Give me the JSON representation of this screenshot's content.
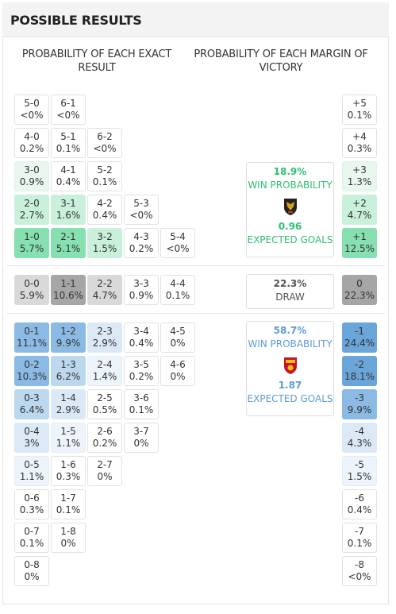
{
  "title": "POSSIBLE RESULTS",
  "headers": {
    "exact_line1": "PROBABILITY OF EACH EXACT",
    "exact_line2": "RESULT",
    "margin_line1": "PROBABILITY OF EACH MARGIN OF",
    "margin_line2": "VICTORY"
  },
  "colors": {
    "home_accent": "#2fbf71",
    "away_accent": "#5b9bd5",
    "draw_text": "#555555"
  },
  "home_wins": [
    {
      "score": "5-0",
      "pct": "<0%"
    },
    {
      "score": "6-1",
      "pct": "<0%"
    },
    {
      "score": "4-0",
      "pct": "0.2%"
    },
    {
      "score": "5-1",
      "pct": "0.1%"
    },
    {
      "score": "6-2",
      "pct": "<0%"
    },
    {
      "score": "3-0",
      "pct": "0.9%"
    },
    {
      "score": "4-1",
      "pct": "0.4%"
    },
    {
      "score": "5-2",
      "pct": "0.1%"
    },
    {
      "score": "2-0",
      "pct": "2.7%"
    },
    {
      "score": "3-1",
      "pct": "1.6%"
    },
    {
      "score": "4-2",
      "pct": "0.4%"
    },
    {
      "score": "5-3",
      "pct": "<0%"
    },
    {
      "score": "1-0",
      "pct": "5.7%"
    },
    {
      "score": "2-1",
      "pct": "5.1%"
    },
    {
      "score": "3-2",
      "pct": "1.5%"
    },
    {
      "score": "4-3",
      "pct": "0.2%"
    },
    {
      "score": "5-4",
      "pct": "<0%"
    }
  ],
  "draws": [
    {
      "score": "0-0",
      "pct": "5.9%"
    },
    {
      "score": "1-1",
      "pct": "10.6%"
    },
    {
      "score": "2-2",
      "pct": "4.7%"
    },
    {
      "score": "3-3",
      "pct": "0.9%"
    },
    {
      "score": "4-4",
      "pct": "0.1%"
    }
  ],
  "away_wins": [
    {
      "score": "0-1",
      "pct": "11.1%"
    },
    {
      "score": "1-2",
      "pct": "9.9%"
    },
    {
      "score": "2-3",
      "pct": "2.9%"
    },
    {
      "score": "3-4",
      "pct": "0.4%"
    },
    {
      "score": "4-5",
      "pct": "0%"
    },
    {
      "score": "0-2",
      "pct": "10.3%"
    },
    {
      "score": "1-3",
      "pct": "6.2%"
    },
    {
      "score": "2-4",
      "pct": "1.4%"
    },
    {
      "score": "3-5",
      "pct": "0.2%"
    },
    {
      "score": "4-6",
      "pct": "0%"
    },
    {
      "score": "0-3",
      "pct": "6.4%"
    },
    {
      "score": "1-4",
      "pct": "2.9%"
    },
    {
      "score": "2-5",
      "pct": "0.5%"
    },
    {
      "score": "3-6",
      "pct": "0.1%"
    },
    {
      "score": "0-4",
      "pct": "3%"
    },
    {
      "score": "1-5",
      "pct": "1.1%"
    },
    {
      "score": "2-6",
      "pct": "0.2%"
    },
    {
      "score": "3-7",
      "pct": "0%"
    },
    {
      "score": "0-5",
      "pct": "1.1%"
    },
    {
      "score": "1-6",
      "pct": "0.3%"
    },
    {
      "score": "2-7",
      "pct": "0%"
    },
    {
      "score": "0-6",
      "pct": "0.3%"
    },
    {
      "score": "1-7",
      "pct": "0.1%"
    },
    {
      "score": "0-7",
      "pct": "0.1%"
    },
    {
      "score": "1-8",
      "pct": "0%"
    },
    {
      "score": "0-8",
      "pct": "0%"
    }
  ],
  "margins_home": [
    {
      "margin": "+5",
      "pct": "0.1%"
    },
    {
      "margin": "+4",
      "pct": "0.3%"
    },
    {
      "margin": "+3",
      "pct": "1.3%"
    },
    {
      "margin": "+2",
      "pct": "4.7%"
    },
    {
      "margin": "+1",
      "pct": "12.5%"
    }
  ],
  "margin_draw": {
    "margin": "0",
    "pct": "22.3%"
  },
  "margins_away": [
    {
      "margin": "-1",
      "pct": "24.4%"
    },
    {
      "margin": "-2",
      "pct": "18.1%"
    },
    {
      "margin": "-3",
      "pct": "9.9%"
    },
    {
      "margin": "-4",
      "pct": "4.3%"
    },
    {
      "margin": "-5",
      "pct": "1.5%"
    },
    {
      "margin": "-6",
      "pct": "0.4%"
    },
    {
      "margin": "-7",
      "pct": "0.1%"
    },
    {
      "margin": "-8",
      "pct": "<0%"
    }
  ],
  "home_summary": {
    "win_pct": "18.9%",
    "win_label": "WIN PROBABILITY",
    "xg": "0.96",
    "xg_label": "EXPECTED GOALS",
    "crest_icon": "garuda-shield-icon"
  },
  "draw_summary": {
    "pct": "22.3%",
    "label": "DRAW"
  },
  "away_summary": {
    "win_pct": "58.7%",
    "win_label": "WIN PROBABILITY",
    "xg": "1.87",
    "xg_label": "EXPECTED GOALS",
    "crest_icon": "cfa-shield-icon"
  }
}
